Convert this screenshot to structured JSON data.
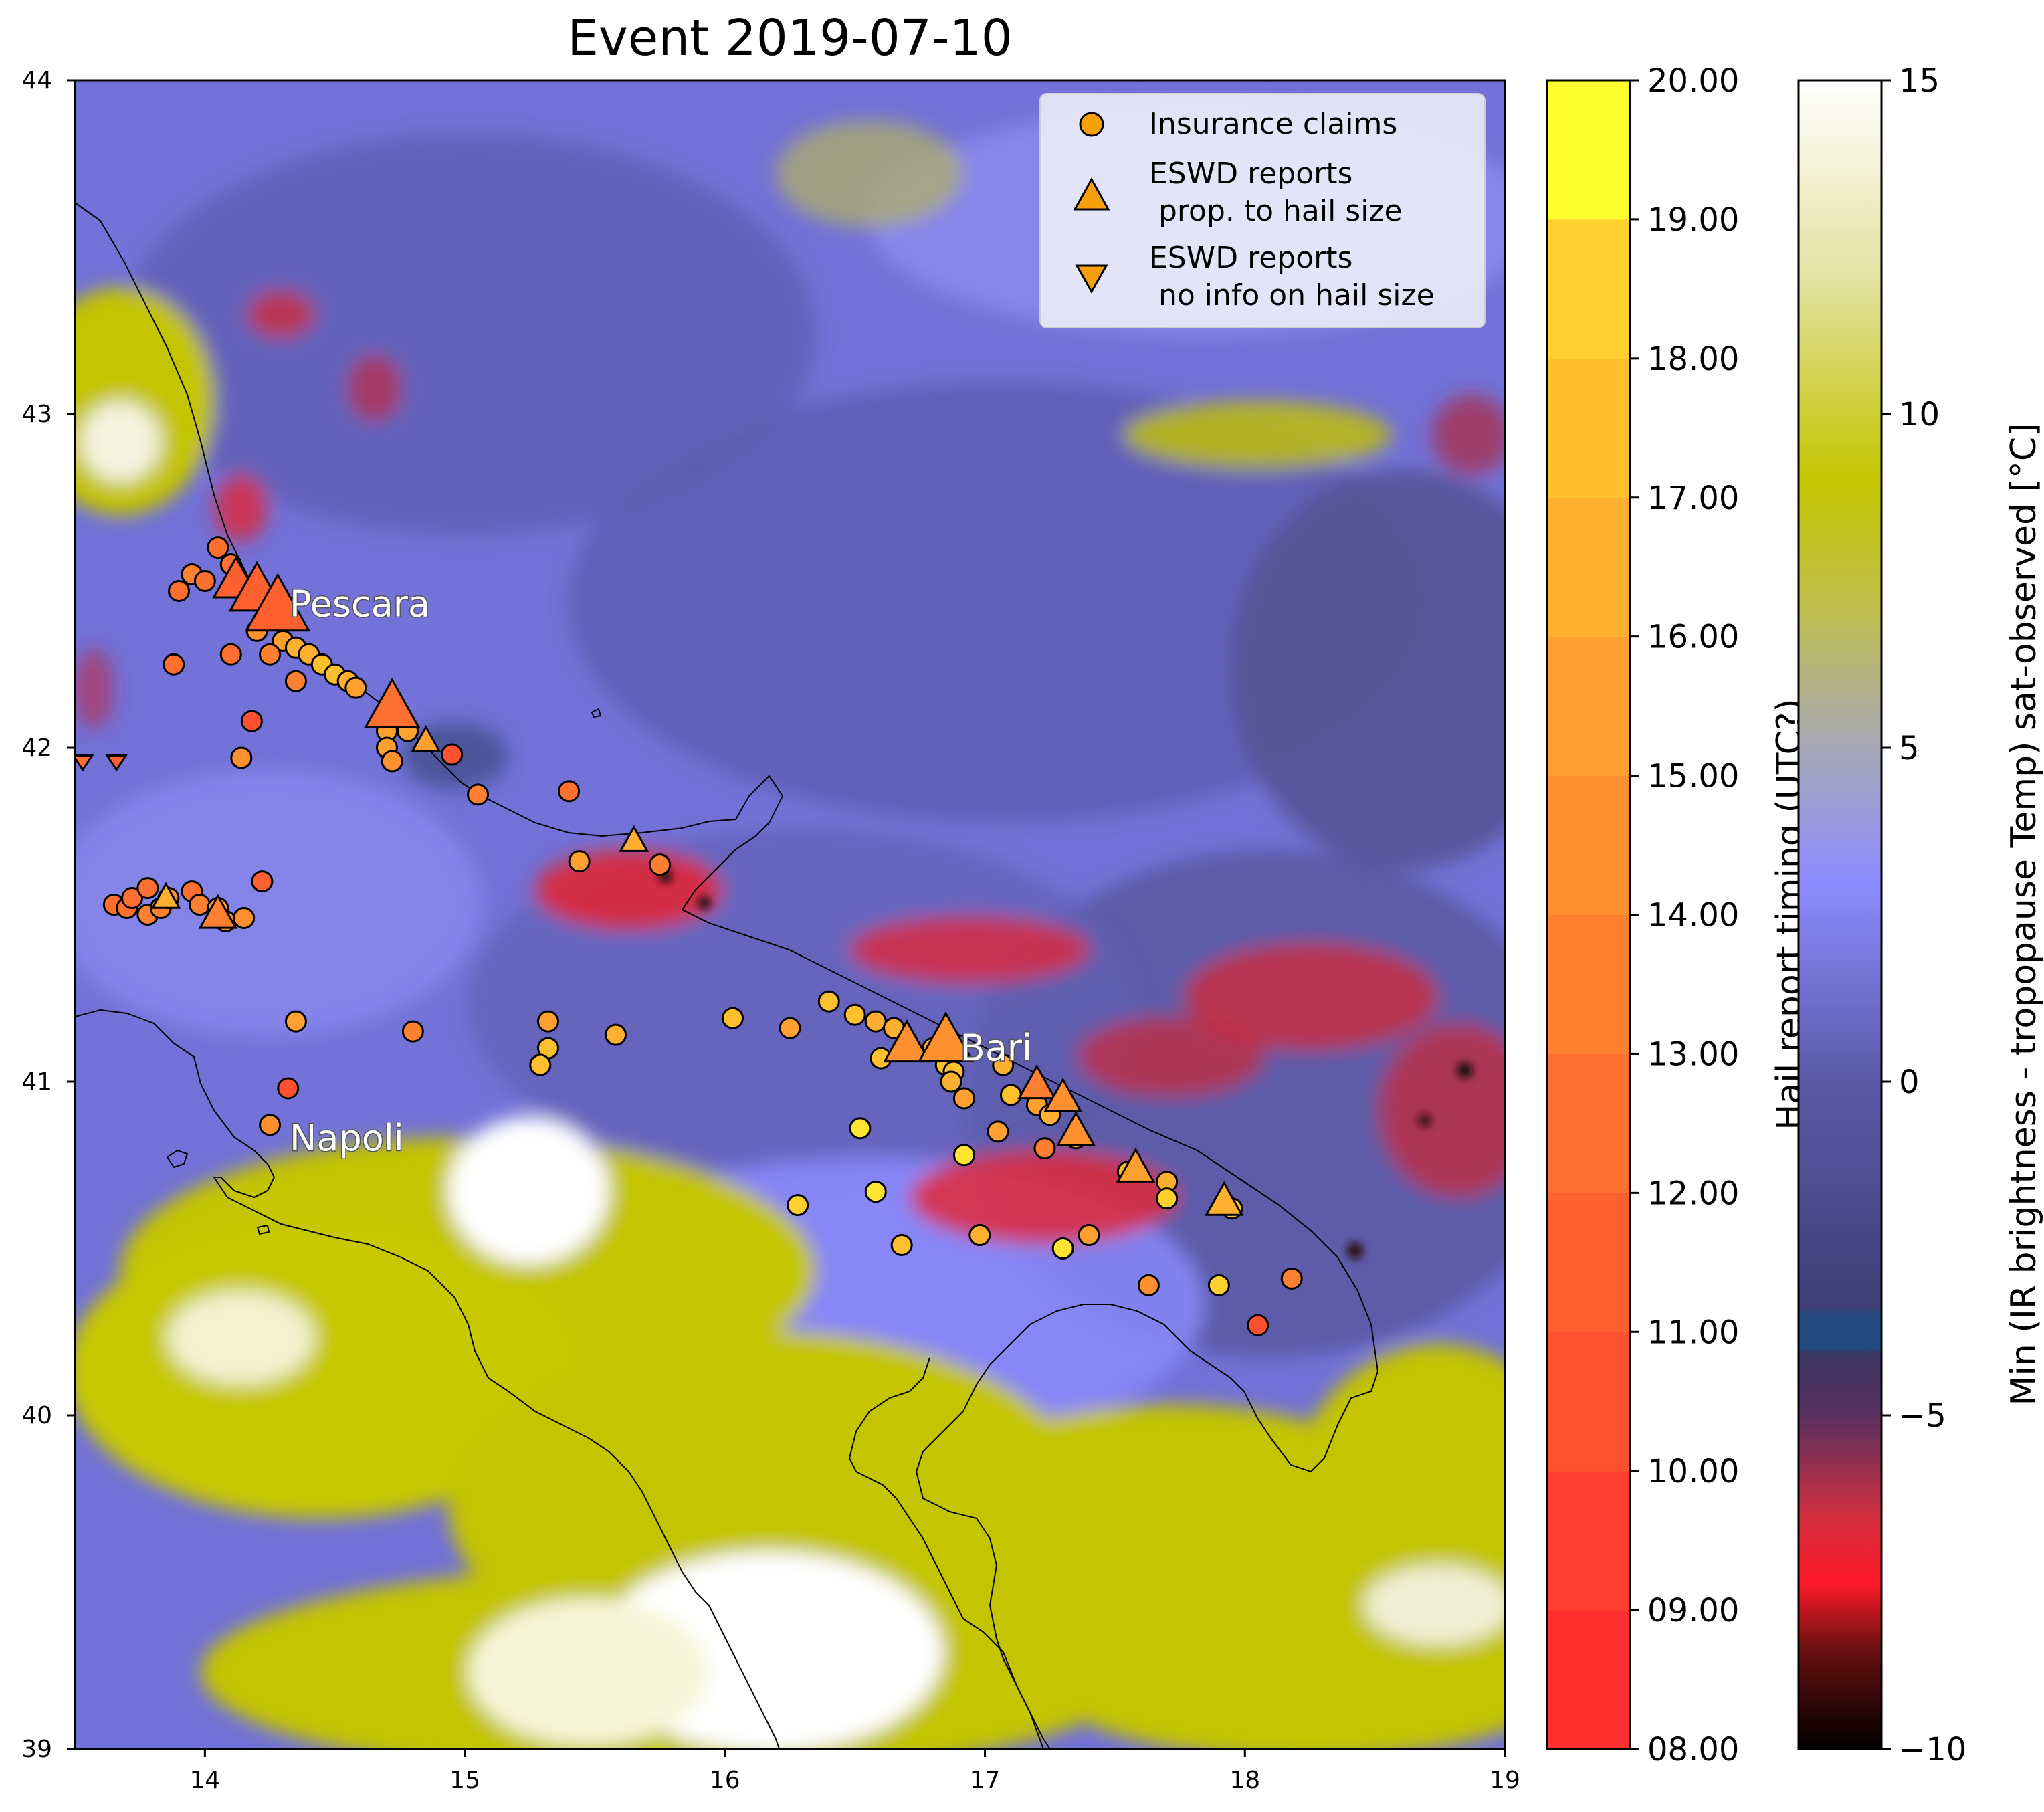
{
  "title": "Event 2019-07-10",
  "map": {
    "lon_range": [
      13.5,
      19
    ],
    "lat_range": [
      39,
      44
    ],
    "x_ticks": [
      "14",
      "15",
      "16",
      "17",
      "18",
      "19"
    ],
    "y_ticks": [
      "39",
      "40",
      "41",
      "42",
      "43",
      "44"
    ],
    "cities": [
      {
        "name": "Pescara",
        "lon": 14.3,
        "lat": 42.43
      },
      {
        "name": "Bari",
        "lon": 16.9,
        "lat": 41.1
      },
      {
        "name": "Napoli",
        "lon": 14.3,
        "lat": 40.83
      }
    ]
  },
  "legend": {
    "items": [
      {
        "label": "Insurance claims",
        "marker": "circle"
      },
      {
        "label": "ESWD reports\n prop. to hail size",
        "marker": "triangle-up"
      },
      {
        "label": "ESWD reports\n no info on hail size",
        "marker": "triangle-down"
      }
    ]
  },
  "colorbar_timing": {
    "label": "Hail report timing (UTC?)",
    "range": [
      8,
      20
    ],
    "ticks": [
      "08.00",
      "09.00",
      "10.00",
      "11.00",
      "12.00",
      "13.00",
      "14.00",
      "15.00",
      "16.00",
      "17.00",
      "18.00",
      "19.00",
      "20.00"
    ],
    "colors": [
      "#ff3030",
      "#ff4030",
      "#ff5030",
      "#ff6030",
      "#ff7030",
      "#ff8030",
      "#ff9030",
      "#ffa030",
      "#ffb030",
      "#ffc030",
      "#ffd030",
      "#ffe530",
      "#ffff30"
    ]
  },
  "colorbar_temp": {
    "label": "Min (IR brightness - tropopause Temp) sat-observed [°C]",
    "range": [
      -10,
      15
    ],
    "ticks": [
      "−10",
      "−5",
      "0",
      "5",
      "10",
      "15"
    ],
    "colors": {
      "-10": "#000000",
      "-8": "#ff1a2a",
      "-6": "#a03050",
      "-4": "#224a80",
      "0": "#5a5aa8",
      "3": "#8c8cff",
      "5": "#a8a8b8",
      "9": "#c4c400",
      "15": "#ffffff"
    }
  },
  "chart_data": {
    "type": "scatter",
    "title": "Event 2019-07-10",
    "xlim": [
      13.5,
      19
    ],
    "ylim": [
      39,
      44
    ],
    "series": [
      {
        "name": "Insurance claims",
        "marker": "circle",
        "points": [
          [
            14.05,
            42.6,
            12
          ],
          [
            14.1,
            42.55,
            12
          ],
          [
            13.95,
            42.52,
            13
          ],
          [
            14.0,
            42.5,
            12
          ],
          [
            13.9,
            42.47,
            12.5
          ],
          [
            14.15,
            42.48,
            12.5
          ],
          [
            14.25,
            42.4,
            16
          ],
          [
            14.2,
            42.35,
            14
          ],
          [
            14.3,
            42.32,
            15
          ],
          [
            14.35,
            42.3,
            16
          ],
          [
            14.4,
            42.28,
            16.5
          ],
          [
            14.45,
            42.25,
            17
          ],
          [
            14.5,
            42.22,
            17
          ],
          [
            14.55,
            42.2,
            16
          ],
          [
            14.58,
            42.18,
            15
          ],
          [
            14.25,
            42.28,
            13
          ],
          [
            14.35,
            42.2,
            13
          ],
          [
            14.1,
            42.28,
            12
          ],
          [
            13.88,
            42.25,
            12
          ],
          [
            14.18,
            42.08,
            10
          ],
          [
            14.14,
            41.97,
            14
          ],
          [
            14.7,
            42.05,
            15
          ],
          [
            14.7,
            42.0,
            15
          ],
          [
            14.72,
            41.96,
            14
          ],
          [
            14.78,
            42.05,
            15
          ],
          [
            14.95,
            41.98,
            10
          ],
          [
            15.05,
            41.86,
            13
          ],
          [
            15.4,
            41.87,
            12
          ],
          [
            15.44,
            41.66,
            15
          ],
          [
            15.75,
            41.65,
            13
          ],
          [
            14.22,
            41.6,
            11
          ],
          [
            13.65,
            41.53,
            12
          ],
          [
            13.7,
            41.52,
            12
          ],
          [
            13.78,
            41.5,
            13
          ],
          [
            13.72,
            41.55,
            12
          ],
          [
            13.78,
            41.58,
            12
          ],
          [
            13.83,
            41.52,
            13
          ],
          [
            13.86,
            41.55,
            14
          ],
          [
            13.95,
            41.57,
            12
          ],
          [
            13.98,
            41.53,
            13
          ],
          [
            14.05,
            41.52,
            15
          ],
          [
            14.08,
            41.48,
            14
          ],
          [
            14.15,
            41.49,
            14
          ],
          [
            14.35,
            41.18,
            15
          ],
          [
            14.8,
            41.15,
            13
          ],
          [
            15.32,
            41.18,
            15
          ],
          [
            15.32,
            41.1,
            17
          ],
          [
            15.29,
            41.05,
            17
          ],
          [
            15.58,
            41.14,
            16
          ],
          [
            16.03,
            41.19,
            17
          ],
          [
            16.25,
            41.16,
            15
          ],
          [
            16.4,
            41.24,
            17
          ],
          [
            16.5,
            41.2,
            17
          ],
          [
            16.58,
            41.18,
            16
          ],
          [
            16.65,
            41.16,
            16.5
          ],
          [
            16.7,
            41.12,
            16
          ],
          [
            16.8,
            41.1,
            16
          ],
          [
            16.6,
            41.07,
            17
          ],
          [
            16.85,
            41.05,
            17
          ],
          [
            16.88,
            41.03,
            17
          ],
          [
            16.87,
            41.0,
            16
          ],
          [
            16.92,
            40.95,
            15
          ],
          [
            17.07,
            41.05,
            16
          ],
          [
            17.1,
            40.96,
            17
          ],
          [
            17.05,
            40.85,
            15
          ],
          [
            17.2,
            40.93,
            15
          ],
          [
            17.25,
            40.9,
            16
          ],
          [
            17.23,
            40.8,
            13
          ],
          [
            17.35,
            40.83,
            15
          ],
          [
            17.55,
            40.73,
            17
          ],
          [
            17.7,
            40.7,
            16
          ],
          [
            17.7,
            40.65,
            18
          ],
          [
            17.95,
            40.62,
            18
          ],
          [
            16.52,
            40.86,
            19
          ],
          [
            16.58,
            40.67,
            19
          ],
          [
            16.92,
            40.78,
            19.5
          ],
          [
            16.28,
            40.63,
            18
          ],
          [
            16.68,
            40.51,
            17
          ],
          [
            16.98,
            40.54,
            16
          ],
          [
            17.3,
            40.5,
            19.5
          ],
          [
            17.4,
            40.54,
            15
          ],
          [
            17.63,
            40.39,
            14
          ],
          [
            17.9,
            40.39,
            18
          ],
          [
            18.18,
            40.41,
            13
          ],
          [
            18.05,
            40.27,
            10
          ],
          [
            14.32,
            40.98,
            10
          ],
          [
            14.25,
            40.87,
            14
          ]
        ]
      },
      {
        "name": "ESWD reports\n prop. to hail size",
        "marker": "triangle-up",
        "points": [
          [
            14.12,
            42.5,
            11,
            2.5
          ],
          [
            14.2,
            42.47,
            11,
            3
          ],
          [
            14.28,
            42.42,
            11,
            3.5
          ],
          [
            14.72,
            42.12,
            12,
            3
          ],
          [
            14.85,
            42.02,
            15,
            1.5
          ],
          [
            15.65,
            41.72,
            16,
            1.5
          ],
          [
            13.85,
            41.55,
            16,
            1.5
          ],
          [
            14.05,
            41.5,
            13,
            2
          ],
          [
            16.7,
            41.11,
            14,
            2.5
          ],
          [
            16.85,
            41.12,
            14,
            3
          ],
          [
            17.2,
            40.99,
            13,
            2
          ],
          [
            17.3,
            40.95,
            14,
            2
          ],
          [
            17.35,
            40.85,
            14,
            2
          ],
          [
            17.58,
            40.74,
            15,
            2
          ],
          [
            17.92,
            40.64,
            16,
            2
          ]
        ]
      },
      {
        "name": "ESWD reports\n no info on hail size",
        "marker": "triangle-down",
        "points": [
          [
            13.53,
            41.96,
            12
          ],
          [
            13.66,
            41.96,
            11
          ]
        ]
      }
    ]
  }
}
